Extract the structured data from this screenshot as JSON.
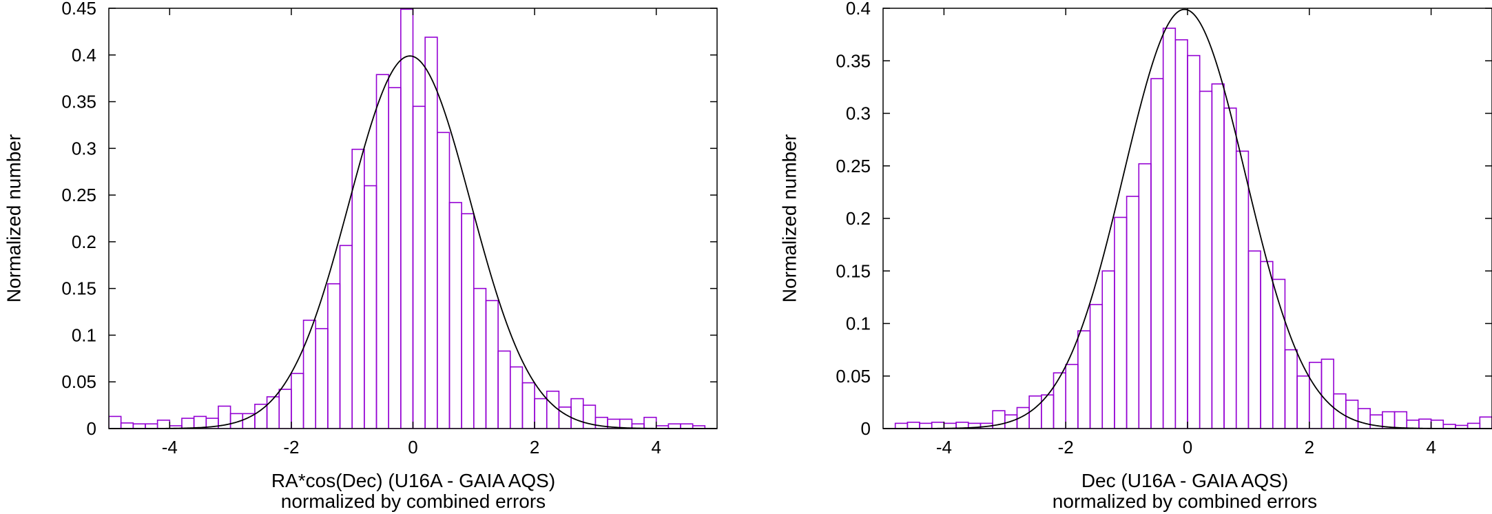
{
  "chart_data": [
    {
      "type": "histogram",
      "title": "",
      "xlabel": "RA*cos(Dec) (U16A - GAIA AQS)",
      "xlabel_line2": "normalized by combined errors",
      "ylabel": "Normalized number",
      "xlim": [
        -5,
        5
      ],
      "ylim": [
        0,
        0.45
      ],
      "xticks": [
        -4,
        -2,
        0,
        2,
        4
      ],
      "xtick_labels": [
        "-4",
        "-2",
        "0",
        "2",
        "4"
      ],
      "yticks": [
        0,
        0.05,
        0.1,
        0.15,
        0.2,
        0.25,
        0.3,
        0.35,
        0.4,
        0.45
      ],
      "ytick_labels": [
        "0",
        "0.05",
        "0.1",
        "0.15",
        "0.2",
        "0.25",
        "0.3",
        "0.35",
        "0.4",
        "0.45"
      ],
      "bin_start": -5,
      "bin_width": 0.2,
      "values": [
        0.013,
        0.006,
        0.005,
        0.005,
        0.009,
        0.003,
        0.011,
        0.013,
        0.011,
        0.024,
        0.016,
        0.016,
        0.026,
        0.034,
        0.042,
        0.059,
        0.116,
        0.107,
        0.155,
        0.196,
        0.299,
        0.26,
        0.379,
        0.365,
        0.449,
        0.345,
        0.419,
        0.317,
        0.242,
        0.23,
        0.15,
        0.137,
        0.083,
        0.066,
        0.049,
        0.032,
        0.04,
        0.023,
        0.032,
        0.025,
        0.012,
        0.01,
        0.01,
        0.005,
        0.012,
        0.003,
        0.005,
        0.005,
        0.003
      ],
      "bar_color": "#9400d3",
      "curve": {
        "type": "gaussian",
        "mean": -0.05,
        "sigma": 1.0,
        "color": "#000000"
      }
    },
    {
      "type": "histogram",
      "title": "",
      "xlabel": "Dec (U16A - GAIA AQS)",
      "xlabel_line2": "normalized by combined errors",
      "ylabel": "Normalized number",
      "xlim": [
        -5,
        5
      ],
      "ylim": [
        0,
        0.4
      ],
      "xticks": [
        -4,
        -2,
        0,
        2,
        4
      ],
      "xtick_labels": [
        "-4",
        "-2",
        "0",
        "2",
        "4"
      ],
      "yticks": [
        0,
        0.05,
        0.1,
        0.15,
        0.2,
        0.25,
        0.3,
        0.35,
        0.4
      ],
      "ytick_labels": [
        "0",
        "0.05",
        "0.1",
        "0.15",
        "0.2",
        "0.25",
        "0.3",
        "0.35",
        "0.4"
      ],
      "bin_start": -4.8,
      "bin_width": 0.2,
      "values": [
        0.005,
        0.006,
        0.005,
        0.006,
        0.005,
        0.006,
        0.005,
        0.005,
        0.017,
        0.013,
        0.02,
        0.031,
        0.032,
        0.053,
        0.061,
        0.093,
        0.118,
        0.15,
        0.201,
        0.221,
        0.252,
        0.333,
        0.381,
        0.37,
        0.355,
        0.321,
        0.328,
        0.305,
        0.264,
        0.169,
        0.159,
        0.142,
        0.075,
        0.05,
        0.063,
        0.066,
        0.033,
        0.027,
        0.019,
        0.013,
        0.016,
        0.016,
        0.008,
        0.009,
        0.008,
        0.004,
        0.003,
        0.005,
        0.011
      ],
      "bar_color": "#9400d3",
      "curve": {
        "type": "gaussian",
        "mean": -0.05,
        "sigma": 1.0,
        "color": "#000000"
      }
    }
  ]
}
